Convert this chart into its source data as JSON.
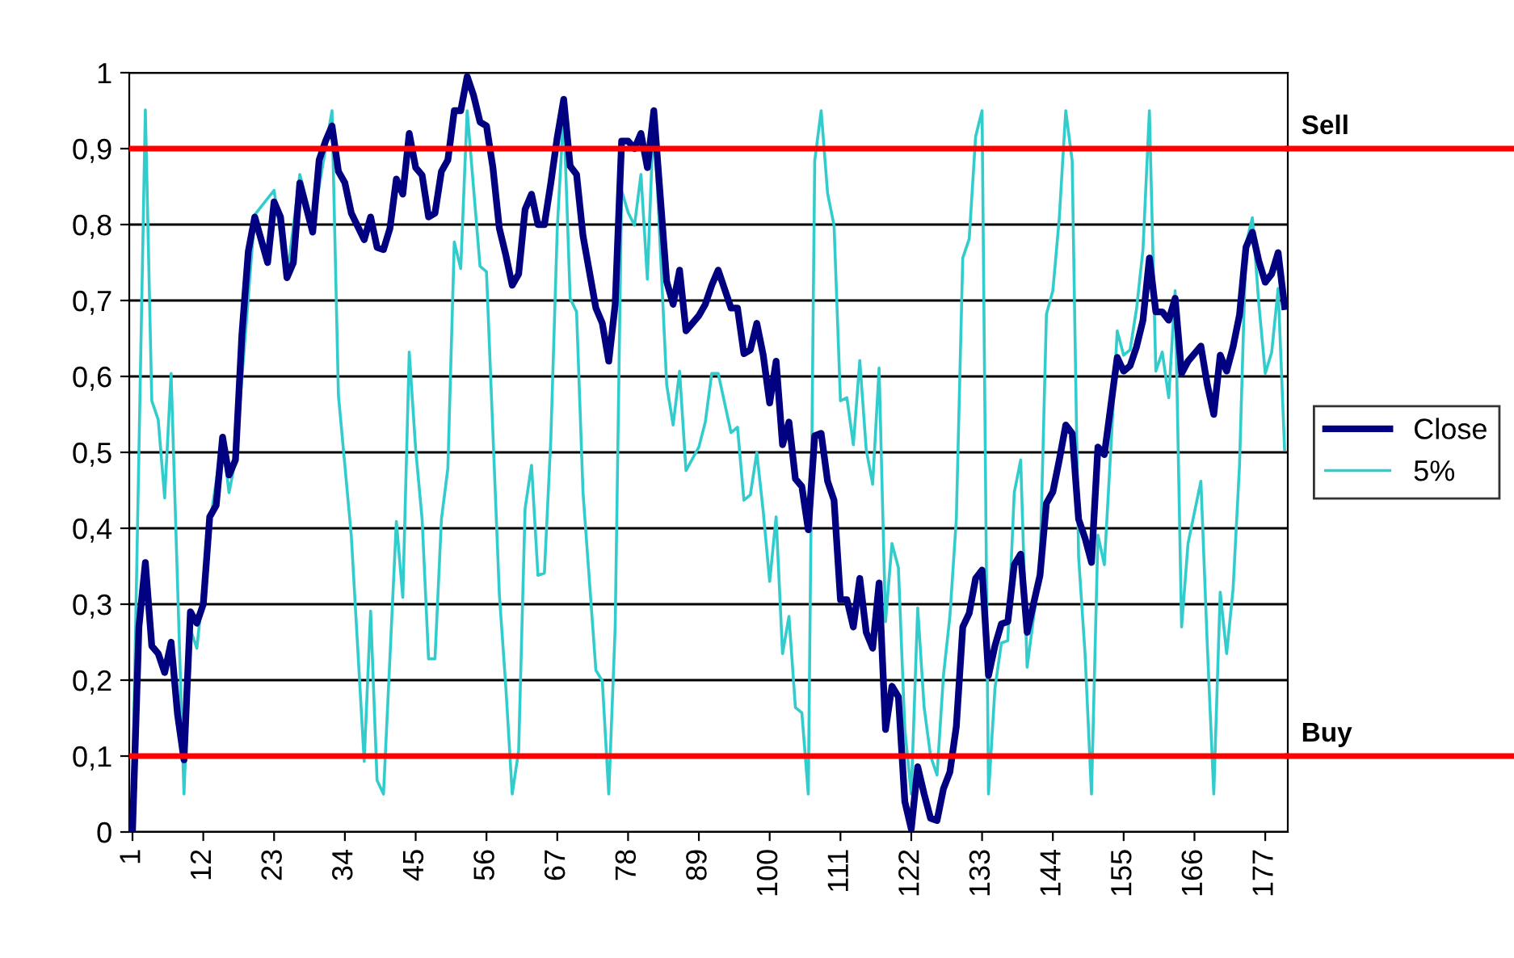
{
  "chart_data": {
    "type": "line",
    "xlim": [
      0.5,
      180.5
    ],
    "xticks": [
      1,
      12,
      23,
      34,
      45,
      56,
      67,
      78,
      89,
      100,
      111,
      122,
      133,
      144,
      155,
      166,
      177
    ],
    "ylim": [
      0,
      1
    ],
    "yticks": [
      0,
      {
        "value": 0.1,
        "label": "0,1"
      },
      {
        "value": 0.2,
        "label": "0,2"
      },
      {
        "value": 0.3,
        "label": "0,3"
      },
      {
        "value": 0.4,
        "label": "0,4"
      },
      {
        "value": 0.5,
        "label": "0,5"
      },
      {
        "value": 0.6,
        "label": "0,6"
      },
      {
        "value": 0.7,
        "label": "0,7"
      },
      {
        "value": 0.8,
        "label": "0,8"
      },
      {
        "value": 0.9,
        "label": "0,9"
      },
      1
    ],
    "grid": "y",
    "legend": "right",
    "series": [
      {
        "name": "Close",
        "color": "#000080",
        "x": [
          1,
          2,
          3,
          4,
          5,
          6,
          7,
          8,
          9,
          10,
          11,
          12,
          13,
          14,
          15,
          16,
          17,
          18,
          19,
          20,
          22,
          23,
          24,
          25,
          26,
          27,
          29,
          30,
          31,
          32,
          33,
          34,
          35,
          37,
          38,
          39,
          40,
          41,
          42,
          43,
          44,
          45,
          46,
          47,
          48,
          49,
          50,
          51,
          52,
          53,
          54,
          55,
          56,
          57,
          58,
          59,
          60,
          61,
          62,
          63,
          64,
          65,
          66,
          67,
          68,
          69,
          70,
          71,
          73,
          74,
          75,
          76,
          77,
          78,
          79,
          80,
          81,
          82,
          84,
          85,
          86,
          87,
          89,
          90,
          91,
          92,
          94,
          95,
          96,
          97,
          98,
          99,
          100,
          101,
          102,
          103,
          104,
          105,
          106,
          107,
          108,
          109,
          110,
          111,
          112,
          113,
          114,
          115,
          116,
          117,
          118,
          119,
          120,
          121,
          122,
          123,
          124,
          125,
          126,
          127,
          128,
          129,
          130,
          131,
          132,
          133,
          134,
          135,
          136,
          137,
          138,
          139,
          140,
          142,
          143,
          144,
          145,
          146,
          147,
          148,
          149,
          150,
          151,
          152,
          153,
          154,
          155,
          156,
          157,
          158,
          159,
          160,
          161,
          162,
          163,
          164,
          165,
          167,
          168,
          169,
          170,
          171,
          172,
          173,
          174,
          175,
          176,
          177,
          178,
          179,
          180
        ],
        "values": [
          0.0,
          0.27,
          0.355,
          0.245,
          0.235,
          0.21,
          0.25,
          0.155,
          0.095,
          0.29,
          0.275,
          0.3,
          0.415,
          0.43,
          0.52,
          0.47,
          0.49,
          0.655,
          0.765,
          0.81,
          0.75,
          0.83,
          0.81,
          0.73,
          0.75,
          0.855,
          0.79,
          0.885,
          0.91,
          0.93,
          0.87,
          0.855,
          0.815,
          0.78,
          0.81,
          0.77,
          0.767,
          0.795,
          0.86,
          0.84,
          0.92,
          0.875,
          0.865,
          0.81,
          0.815,
          0.87,
          0.885,
          0.95,
          0.95,
          0.995,
          0.97,
          0.935,
          0.93,
          0.875,
          0.795,
          0.76,
          0.72,
          0.735,
          0.82,
          0.84,
          0.8,
          0.8,
          0.855,
          0.915,
          0.965,
          0.877,
          0.866,
          0.785,
          0.69,
          0.67,
          0.62,
          0.695,
          0.91,
          0.91,
          0.9,
          0.92,
          0.875,
          0.95,
          0.725,
          0.695,
          0.74,
          0.66,
          0.68,
          0.695,
          0.72,
          0.74,
          0.69,
          0.69,
          0.63,
          0.635,
          0.67,
          0.628,
          0.565,
          0.62,
          0.51,
          0.54,
          0.465,
          0.455,
          0.398,
          0.522,
          0.525,
          0.462,
          0.437,
          0.306,
          0.306,
          0.27,
          0.334,
          0.263,
          0.242,
          0.328,
          0.135,
          0.192,
          0.178,
          0.04,
          0.004,
          0.086,
          0.05,
          0.018,
          0.015,
          0.057,
          0.079,
          0.139,
          0.27,
          0.288,
          0.334,
          0.345,
          0.206,
          0.245,
          0.274,
          0.277,
          0.352,
          0.366,
          0.263,
          0.338,
          0.433,
          0.448,
          0.49,
          0.536,
          0.525,
          0.412,
          0.387,
          0.355,
          0.507,
          0.497,
          0.561,
          0.625,
          0.607,
          0.614,
          0.639,
          0.674,
          0.756,
          0.685,
          0.685,
          0.674,
          0.703,
          0.604,
          0.62,
          0.64,
          0.589,
          0.55,
          0.628,
          0.607,
          0.639,
          0.681,
          0.77,
          0.79,
          0.752,
          0.724,
          0.735,
          0.763,
          0.692
        ]
      },
      {
        "name": "5%",
        "color": "#33cccc",
        "x": [
          1,
          3,
          4,
          5,
          6,
          7,
          9,
          10,
          11,
          13,
          15,
          16,
          17,
          20,
          23,
          25,
          27,
          29,
          32,
          33,
          35,
          37,
          38,
          39,
          40,
          42,
          43,
          44,
          45,
          46,
          47,
          48,
          49,
          50,
          51,
          52,
          53,
          55,
          56,
          58,
          59,
          60,
          61,
          62,
          63,
          64,
          65,
          66,
          67,
          68,
          69,
          70,
          71,
          73,
          74,
          75,
          76,
          77,
          78,
          79,
          80,
          81,
          82,
          84,
          85,
          86,
          87,
          89,
          90,
          91,
          92,
          94,
          95,
          96,
          97,
          98,
          99,
          100,
          101,
          102,
          103,
          104,
          105,
          106,
          107,
          108,
          109,
          110,
          111,
          112,
          113,
          114,
          115,
          116,
          117,
          118,
          119,
          120,
          121,
          122,
          123,
          124,
          125,
          126,
          127,
          128,
          129,
          130,
          131,
          132,
          133,
          134,
          135,
          136,
          137,
          138,
          139,
          140,
          142,
          143,
          144,
          145,
          146,
          147,
          148,
          149,
          150,
          151,
          152,
          153,
          154,
          155,
          156,
          157,
          158,
          159,
          160,
          161,
          162,
          163,
          164,
          165,
          167,
          168,
          169,
          170,
          171,
          172,
          173,
          174,
          175,
          176,
          177,
          178,
          179,
          180
        ],
        "values": [
          0.05,
          0.951,
          0.568,
          0.543,
          0.44,
          0.604,
          0.05,
          0.267,
          0.242,
          0.405,
          0.518,
          0.447,
          0.49,
          0.813,
          0.845,
          0.73,
          0.866,
          0.8,
          0.95,
          0.575,
          0.39,
          0.093,
          0.291,
          0.068,
          0.05,
          0.409,
          0.309,
          0.632,
          0.504,
          0.412,
          0.228,
          0.228,
          0.412,
          0.479,
          0.777,
          0.742,
          0.95,
          0.745,
          0.738,
          0.313,
          0.192,
          0.05,
          0.107,
          0.426,
          0.483,
          0.338,
          0.341,
          0.518,
          0.795,
          0.95,
          0.703,
          0.685,
          0.447,
          0.213,
          0.199,
          0.05,
          0.27,
          0.845,
          0.816,
          0.799,
          0.866,
          0.728,
          0.95,
          0.589,
          0.536,
          0.607,
          0.476,
          0.507,
          0.54,
          0.604,
          0.604,
          0.526,
          0.533,
          0.437,
          0.444,
          0.5,
          0.422,
          0.33,
          0.415,
          0.235,
          0.284,
          0.164,
          0.157,
          0.05,
          0.884,
          0.95,
          0.841,
          0.799,
          0.568,
          0.572,
          0.51,
          0.621,
          0.504,
          0.458,
          0.611,
          0.277,
          0.38,
          0.348,
          0.135,
          0.05,
          0.295,
          0.164,
          0.1,
          0.075,
          0.206,
          0.284,
          0.412,
          0.756,
          0.781,
          0.916,
          0.95,
          0.05,
          0.189,
          0.249,
          0.252,
          0.447,
          0.49,
          0.217,
          0.348,
          0.682,
          0.713,
          0.809,
          0.95,
          0.884,
          0.362,
          0.235,
          0.05,
          0.391,
          0.352,
          0.504,
          0.66,
          0.628,
          0.635,
          0.689,
          0.767,
          0.95,
          0.607,
          0.632,
          0.572,
          0.713,
          0.27,
          0.38,
          0.462,
          0.245,
          0.05,
          0.316,
          0.235,
          0.32,
          0.483,
          0.774,
          0.809,
          0.696,
          0.604,
          0.632,
          0.716,
          0.504
        ]
      }
    ],
    "ref_lines": [
      {
        "axis": "y",
        "value": 0.9,
        "label": "Sell",
        "color": "#ff0000"
      },
      {
        "axis": "y",
        "value": 0.1,
        "label": "Buy",
        "color": "#ff0000"
      }
    ]
  }
}
